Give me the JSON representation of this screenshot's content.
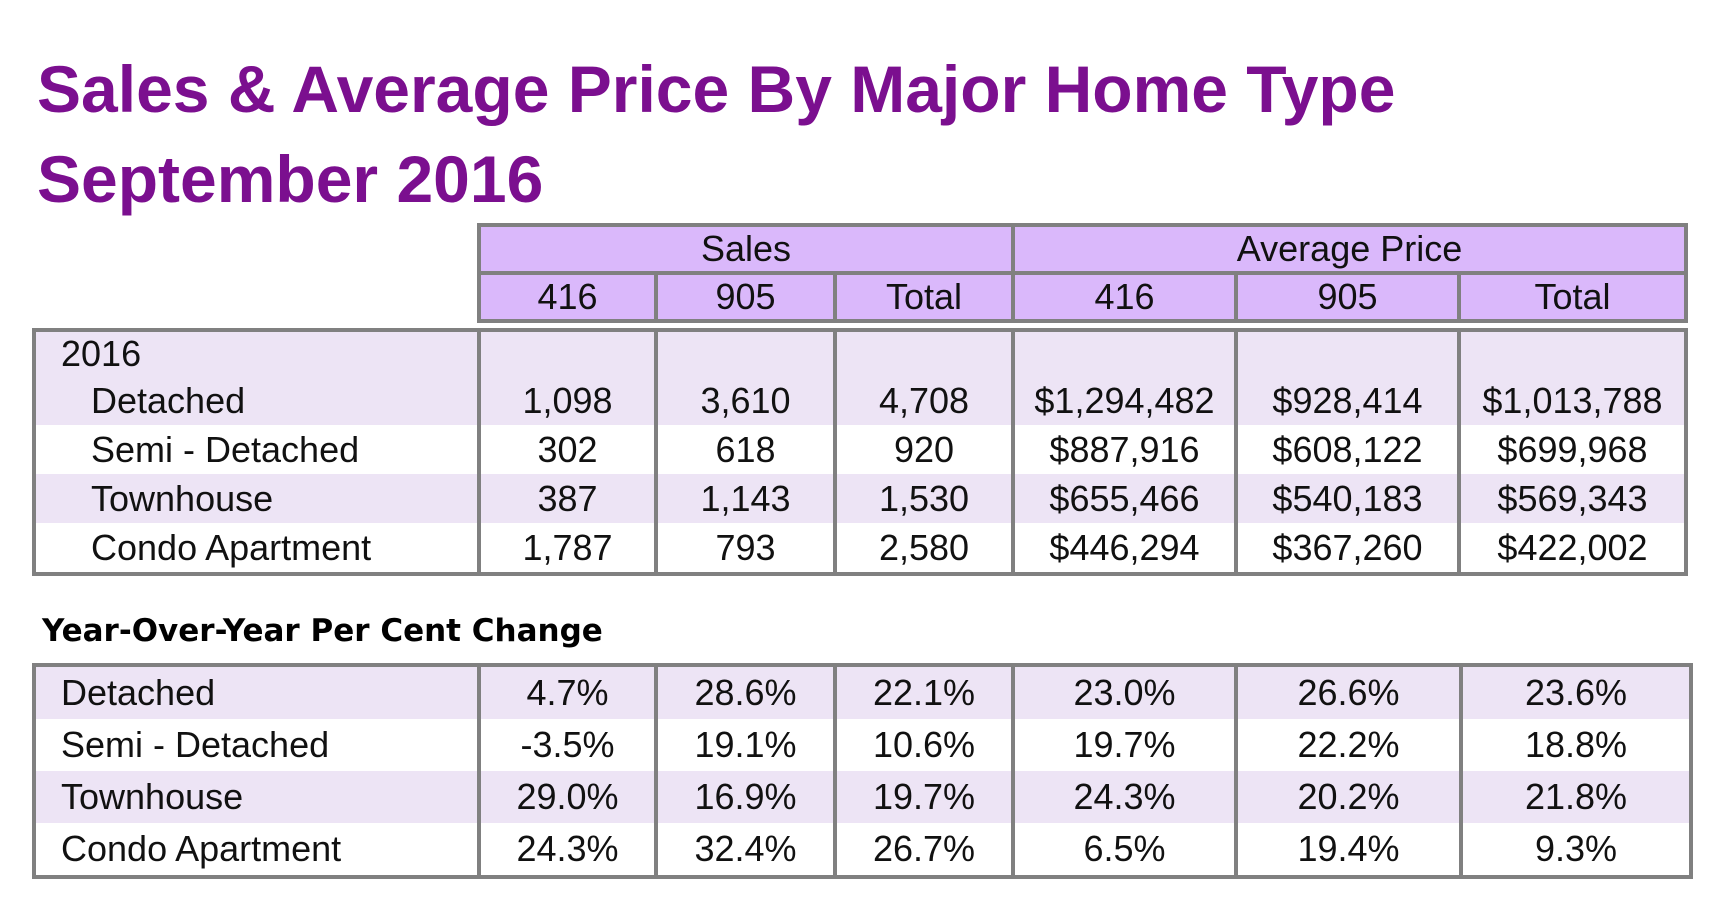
{
  "title": {
    "line1": "Sales & Average Price By Major Home Type",
    "line2": "September 2016"
  },
  "header": {
    "groups": [
      "Sales",
      "Average Price"
    ],
    "columns": [
      "416",
      "905",
      "Total",
      "416",
      "905",
      "Total"
    ]
  },
  "table_2016": {
    "year_label": "2016",
    "rows": [
      {
        "label": "Detached",
        "values": [
          "1,098",
          "3,610",
          "4,708",
          "$1,294,482",
          "$928,414",
          "$1,013,788"
        ]
      },
      {
        "label": "Semi - Detached",
        "values": [
          "302",
          "618",
          "920",
          "$887,916",
          "$608,122",
          "$699,968"
        ]
      },
      {
        "label": "Townhouse",
        "values": [
          "387",
          "1,143",
          "1,530",
          "$655,466",
          "$540,183",
          "$569,343"
        ]
      },
      {
        "label": "Condo Apartment",
        "values": [
          "1,787",
          "793",
          "2,580",
          "$446,294",
          "$367,260",
          "$422,002"
        ]
      }
    ]
  },
  "yoy": {
    "heading": "Year-Over-Year Per Cent Change",
    "rows": [
      {
        "label": "Detached",
        "values": [
          "4.7%",
          "28.6%",
          "22.1%",
          "23.0%",
          "26.6%",
          "23.6%"
        ]
      },
      {
        "label": "Semi - Detached",
        "values": [
          "-3.5%",
          "19.1%",
          "10.6%",
          "19.7%",
          "22.2%",
          "18.8%"
        ]
      },
      {
        "label": "Townhouse",
        "values": [
          "29.0%",
          "16.9%",
          "19.7%",
          "24.3%",
          "20.2%",
          "21.8%"
        ]
      },
      {
        "label": "Condo Apartment",
        "values": [
          "24.3%",
          "32.4%",
          "26.7%",
          "6.5%",
          "19.4%",
          "9.3%"
        ]
      }
    ]
  },
  "colors": {
    "title": "#7b0f8f",
    "header_fill": "#dab8fb",
    "row_shade": "#ede4f5",
    "border": "#808080"
  }
}
